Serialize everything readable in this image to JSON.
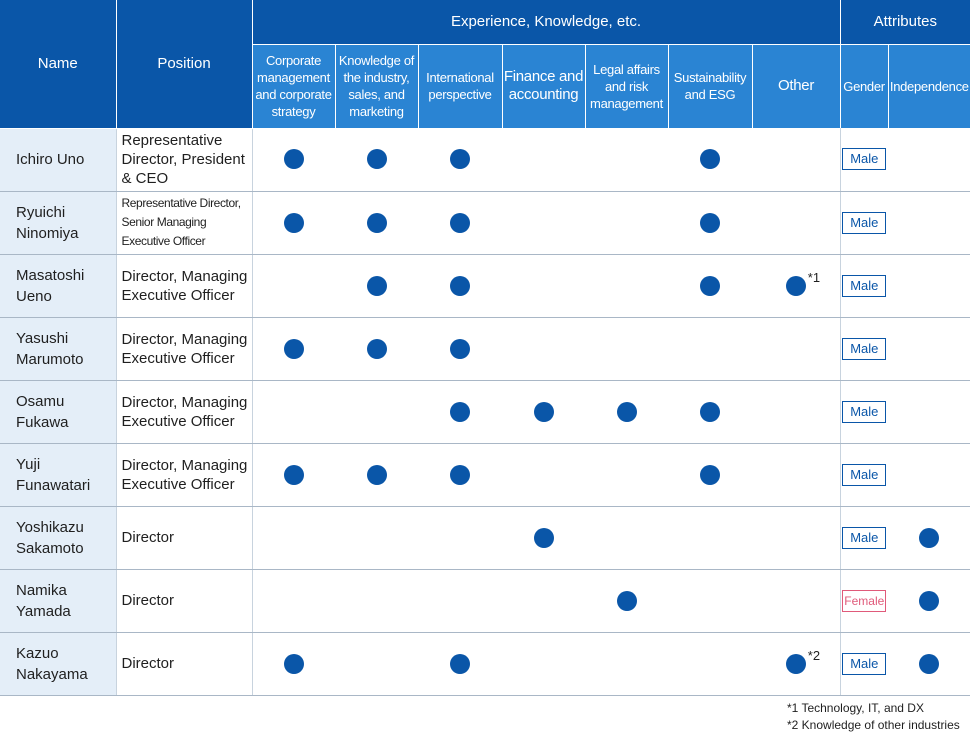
{
  "header": {
    "name": "Name",
    "position": "Position",
    "experience_group": "Experience, Knowledge, etc.",
    "attributes_group": "Attributes",
    "experience_cols": [
      "Corporate management and corporate strategy",
      "Knowledge of the industry, sales, and marketing",
      "International perspective",
      "Finance and accounting",
      "Legal affairs and risk management",
      "Sustainability and ESG",
      "Other"
    ],
    "gender": "Gender",
    "independence": "Independence"
  },
  "rows": [
    {
      "name_1": "Ichiro Uno",
      "name_2": "",
      "position": "Representative Director, President & CEO",
      "skills": [
        true,
        true,
        true,
        false,
        false,
        true,
        false
      ],
      "other_note": "",
      "gender": "Male",
      "independent": false
    },
    {
      "name_1": "Ryuichi",
      "name_2": "Ninomiya",
      "position": "Representative Director, Senior Managing Executive Officer",
      "skills": [
        true,
        true,
        true,
        false,
        false,
        true,
        false
      ],
      "other_note": "",
      "gender": "Male",
      "independent": false
    },
    {
      "name_1": "Masatoshi",
      "name_2": "Ueno",
      "position": "Director, Managing Executive Officer",
      "skills": [
        false,
        true,
        true,
        false,
        false,
        true,
        true
      ],
      "other_note": "*1",
      "gender": "Male",
      "independent": false
    },
    {
      "name_1": "Yasushi",
      "name_2": "Marumoto",
      "position": "Director, Managing Executive Officer",
      "skills": [
        true,
        true,
        true,
        false,
        false,
        false,
        false
      ],
      "other_note": "",
      "gender": "Male",
      "independent": false
    },
    {
      "name_1": "Osamu",
      "name_2": "Fukawa",
      "position": "Director, Managing Executive Officer",
      "skills": [
        false,
        false,
        true,
        true,
        true,
        true,
        false
      ],
      "other_note": "",
      "gender": "Male",
      "independent": false
    },
    {
      "name_1": "Yuji",
      "name_2": "Funawatari",
      "position": "Director, Managing Executive Officer",
      "skills": [
        true,
        true,
        true,
        false,
        false,
        true,
        false
      ],
      "other_note": "",
      "gender": "Male",
      "independent": false
    },
    {
      "name_1": "Yoshikazu",
      "name_2": "Sakamoto",
      "position": "Director",
      "skills": [
        false,
        false,
        false,
        true,
        false,
        false,
        false
      ],
      "other_note": "",
      "gender": "Male",
      "independent": true
    },
    {
      "name_1": "Namika",
      "name_2": "Yamada",
      "position": "Director",
      "skills": [
        false,
        false,
        false,
        false,
        true,
        false,
        false
      ],
      "other_note": "",
      "gender": "Female",
      "independent": true
    },
    {
      "name_1": "Kazuo",
      "name_2": "Nakayama",
      "position": "Director",
      "skills": [
        true,
        false,
        true,
        false,
        false,
        false,
        true
      ],
      "other_note": "*2",
      "gender": "Male",
      "independent": true
    }
  ],
  "footnotes": [
    "*1 Technology, IT, and DX",
    "*2 Knowledge of other industries"
  ],
  "colors": {
    "header_dark": "#0a56a8",
    "header_light": "#2a84d3",
    "name_cell": "#e4eef8",
    "dot": "#0a56a8",
    "male_badge": "#0a56a8",
    "female_badge": "#e05a7a"
  },
  "icons": {
    "mark": "filled-circle-icon"
  }
}
